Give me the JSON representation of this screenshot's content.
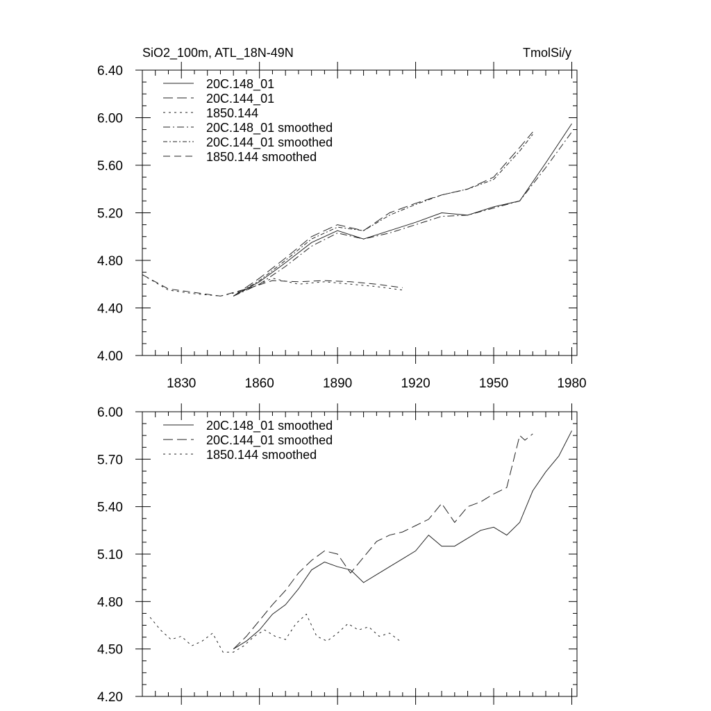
{
  "chart_data": [
    {
      "type": "line",
      "title": "SiO2_100m, ATL_18N-49N",
      "units": "TmolSi/y",
      "xlim": [
        1815,
        1982
      ],
      "ylim": [
        4.0,
        6.4
      ],
      "x_ticks": [
        1830,
        1860,
        1890,
        1920,
        1950,
        1980
      ],
      "y_ticks": [
        4.0,
        4.4,
        4.8,
        5.2,
        5.6,
        6.0,
        6.4
      ],
      "y_tick_labels": [
        "4.00",
        "4.40",
        "4.80",
        "5.20",
        "5.60",
        "6.00",
        "6.40"
      ],
      "legend": [
        "20C.148_01",
        "20C.144_01",
        "1850.144",
        "20C.148_01 smoothed",
        "20C.144_01 smoothed",
        "1850.144 smoothed"
      ],
      "series": [
        {
          "name": "20C.148_01",
          "x": [
            1850,
            1860,
            1870,
            1880,
            1890,
            1900,
            1910,
            1920,
            1930,
            1940,
            1950,
            1960,
            1970,
            1980
          ],
          "y": [
            4.5,
            4.62,
            4.78,
            4.95,
            5.05,
            4.98,
            5.05,
            5.12,
            5.2,
            5.18,
            5.25,
            5.3,
            5.62,
            5.95
          ]
        },
        {
          "name": "20C.144_01",
          "x": [
            1850,
            1860,
            1870,
            1880,
            1890,
            1900,
            1910,
            1920,
            1930,
            1940,
            1950,
            1960,
            1965
          ],
          "y": [
            4.5,
            4.65,
            4.82,
            5.0,
            5.1,
            5.05,
            5.2,
            5.28,
            5.35,
            5.4,
            5.5,
            5.75,
            5.88
          ]
        },
        {
          "name": "1850.144",
          "x": [
            1815,
            1825,
            1835,
            1845,
            1855,
            1865,
            1875,
            1885,
            1895,
            1905,
            1915
          ],
          "y": [
            4.68,
            4.55,
            4.52,
            4.5,
            4.55,
            4.65,
            4.6,
            4.62,
            4.6,
            4.58,
            4.55
          ]
        },
        {
          "name": "20C.148_01 smoothed",
          "x": [
            1850,
            1860,
            1870,
            1880,
            1890,
            1900,
            1910,
            1920,
            1930,
            1940,
            1950,
            1960,
            1970,
            1980
          ],
          "y": [
            4.5,
            4.6,
            4.75,
            4.92,
            5.03,
            4.98,
            5.03,
            5.1,
            5.17,
            5.18,
            5.24,
            5.3,
            5.58,
            5.88
          ]
        },
        {
          "name": "20C.144_01 smoothed",
          "x": [
            1850,
            1860,
            1870,
            1880,
            1890,
            1900,
            1910,
            1920,
            1930,
            1940,
            1950,
            1960,
            1965
          ],
          "y": [
            4.5,
            4.63,
            4.8,
            4.98,
            5.08,
            5.05,
            5.18,
            5.27,
            5.35,
            5.4,
            5.48,
            5.72,
            5.86
          ]
        },
        {
          "name": "1850.144 smoothed",
          "x": [
            1815,
            1825,
            1835,
            1845,
            1855,
            1865,
            1875,
            1885,
            1895,
            1905,
            1915
          ],
          "y": [
            4.68,
            4.56,
            4.53,
            4.5,
            4.56,
            4.63,
            4.62,
            4.63,
            4.62,
            4.6,
            4.57
          ]
        }
      ]
    },
    {
      "type": "line",
      "xlim": [
        1815,
        1982
      ],
      "ylim": [
        4.2,
        6.0
      ],
      "x_ticks": [
        1830,
        1860,
        1890,
        1920,
        1950,
        1980
      ],
      "y_ticks": [
        4.2,
        4.5,
        4.8,
        5.1,
        5.4,
        5.7,
        6.0
      ],
      "y_tick_labels": [
        "4.20",
        "4.50",
        "4.80",
        "5.10",
        "5.40",
        "5.70",
        "6.00"
      ],
      "legend": [
        "20C.148_01 smoothed",
        "20C.144_01 smoothed",
        "1850.144 smoothed"
      ],
      "series": [
        {
          "name": "20C.148_01 smoothed",
          "x": [
            1850,
            1855,
            1860,
            1865,
            1870,
            1875,
            1880,
            1885,
            1890,
            1895,
            1900,
            1905,
            1910,
            1915,
            1920,
            1925,
            1930,
            1935,
            1940,
            1945,
            1950,
            1955,
            1960,
            1965,
            1970,
            1975,
            1980
          ],
          "y": [
            4.5,
            4.55,
            4.62,
            4.72,
            4.78,
            4.88,
            5.0,
            5.05,
            5.02,
            5.0,
            4.92,
            4.97,
            5.02,
            5.07,
            5.12,
            5.22,
            5.15,
            5.15,
            5.2,
            5.25,
            5.27,
            5.22,
            5.3,
            5.5,
            5.62,
            5.72,
            5.88
          ]
        },
        {
          "name": "20C.144_01 smoothed",
          "x": [
            1850,
            1855,
            1860,
            1865,
            1870,
            1875,
            1880,
            1885,
            1890,
            1895,
            1900,
            1905,
            1910,
            1915,
            1920,
            1925,
            1930,
            1935,
            1940,
            1945,
            1950,
            1955,
            1960,
            1962,
            1965
          ],
          "y": [
            4.5,
            4.58,
            4.68,
            4.78,
            4.87,
            4.98,
            5.06,
            5.12,
            5.1,
            4.98,
            5.08,
            5.18,
            5.22,
            5.24,
            5.28,
            5.32,
            5.42,
            5.3,
            5.4,
            5.43,
            5.48,
            5.52,
            5.85,
            5.82,
            5.86
          ]
        },
        {
          "name": "1850.144 smoothed",
          "x": [
            1818,
            1822,
            1826,
            1830,
            1834,
            1838,
            1842,
            1846,
            1850,
            1854,
            1858,
            1862,
            1866,
            1870,
            1874,
            1878,
            1882,
            1886,
            1890,
            1894,
            1898,
            1902,
            1906,
            1910,
            1914
          ],
          "y": [
            4.7,
            4.62,
            4.56,
            4.58,
            4.52,
            4.55,
            4.6,
            4.48,
            4.48,
            4.52,
            4.58,
            4.62,
            4.58,
            4.56,
            4.66,
            4.72,
            4.58,
            4.55,
            4.6,
            4.66,
            4.62,
            4.64,
            4.58,
            4.6,
            4.55
          ]
        }
      ]
    }
  ]
}
